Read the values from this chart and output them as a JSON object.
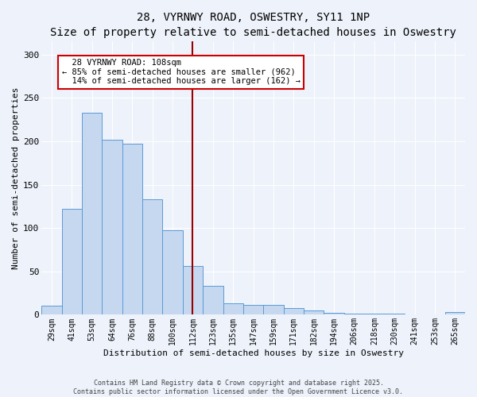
{
  "title1": "28, VYRNWY ROAD, OSWESTRY, SY11 1NP",
  "title2": "Size of property relative to semi-detached houses in Oswestry",
  "xlabel": "Distribution of semi-detached houses by size in Oswestry",
  "ylabel": "Number of semi-detached properties",
  "categories": [
    "29sqm",
    "41sqm",
    "53sqm",
    "64sqm",
    "76sqm",
    "88sqm",
    "100sqm",
    "112sqm",
    "123sqm",
    "135sqm",
    "147sqm",
    "159sqm",
    "171sqm",
    "182sqm",
    "194sqm",
    "206sqm",
    "218sqm",
    "230sqm",
    "241sqm",
    "253sqm",
    "265sqm"
  ],
  "values": [
    10,
    122,
    233,
    202,
    197,
    133,
    97,
    56,
    33,
    13,
    11,
    11,
    8,
    5,
    2,
    1,
    1,
    1,
    0,
    0,
    3
  ],
  "bar_color": "#c5d8f0",
  "bar_edge_color": "#5b9bd5",
  "vline_x": 7.0,
  "vline_label": "28 VYRNWY ROAD: 108sqm",
  "pct_smaller": "85% of semi-detached houses are smaller (962)",
  "pct_larger": "14% of semi-detached houses are larger (162)",
  "background_color": "#edf2fb",
  "plot_bg_color": "#edf2fb",
  "ylim": [
    0,
    315
  ],
  "yticks": [
    0,
    50,
    100,
    150,
    200,
    250,
    300
  ],
  "footer1": "Contains HM Land Registry data © Crown copyright and database right 2025.",
  "footer2": "Contains public sector information licensed under the Open Government Licence v3.0.",
  "annotation_box_color": "#ffffff",
  "annotation_box_edge": "#cc0000",
  "vline_color": "#990000",
  "grid_color": "#ffffff",
  "title_fontsize": 10,
  "subtitle_fontsize": 9,
  "axis_label_fontsize": 8,
  "tick_fontsize": 7,
  "annotation_fontsize": 7.5
}
